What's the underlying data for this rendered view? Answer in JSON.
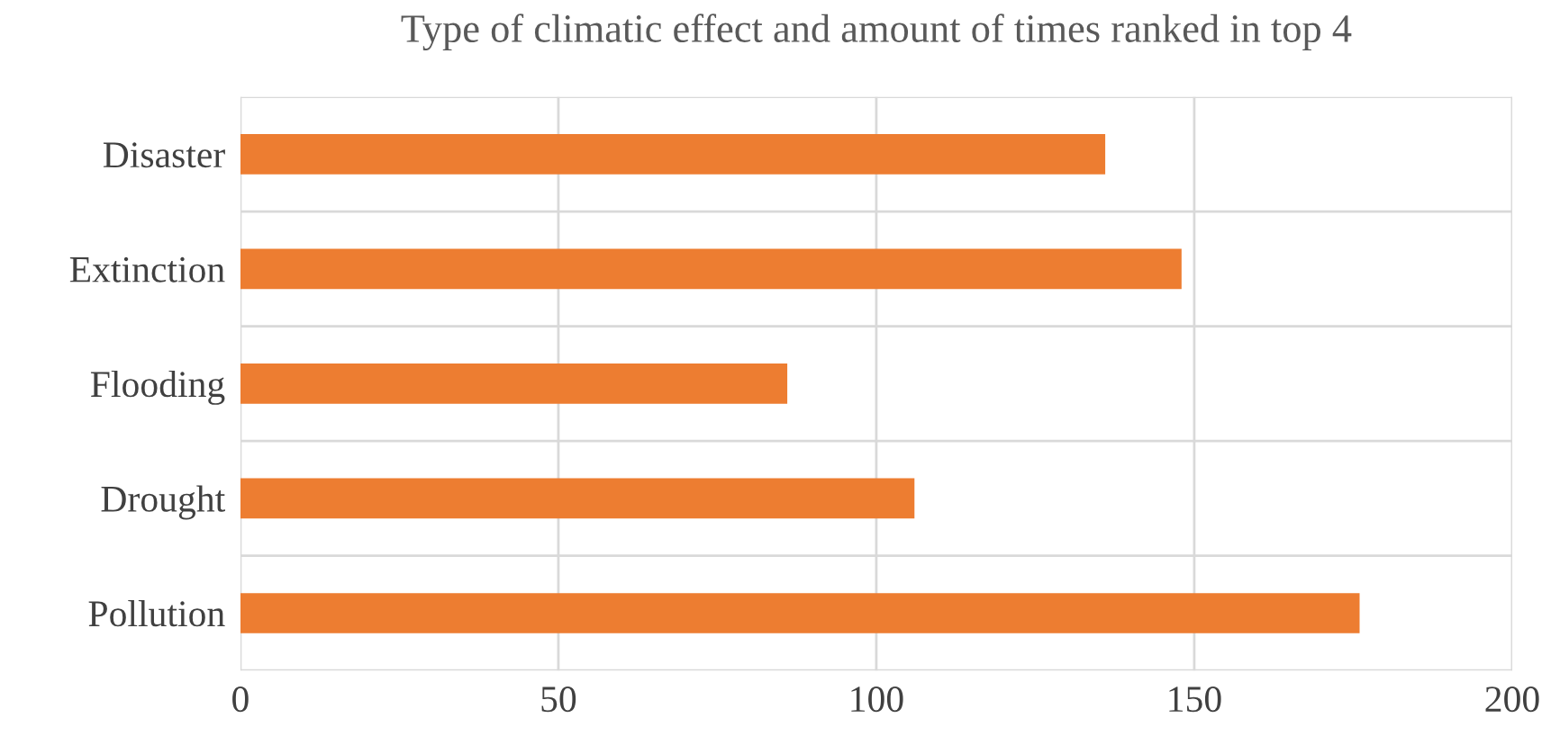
{
  "chart_data": {
    "type": "bar",
    "orientation": "horizontal",
    "title": "Type of climatic effect and amount of times ranked in top 4",
    "categories": [
      "Disaster",
      "Extinction",
      "Flooding",
      "Drought",
      "Pollution"
    ],
    "values": [
      136,
      148,
      86,
      106,
      176
    ],
    "color": "#ed7d31",
    "xlim": [
      0,
      200
    ],
    "xticks": [
      0,
      50,
      100,
      150,
      200
    ],
    "grid": true
  }
}
